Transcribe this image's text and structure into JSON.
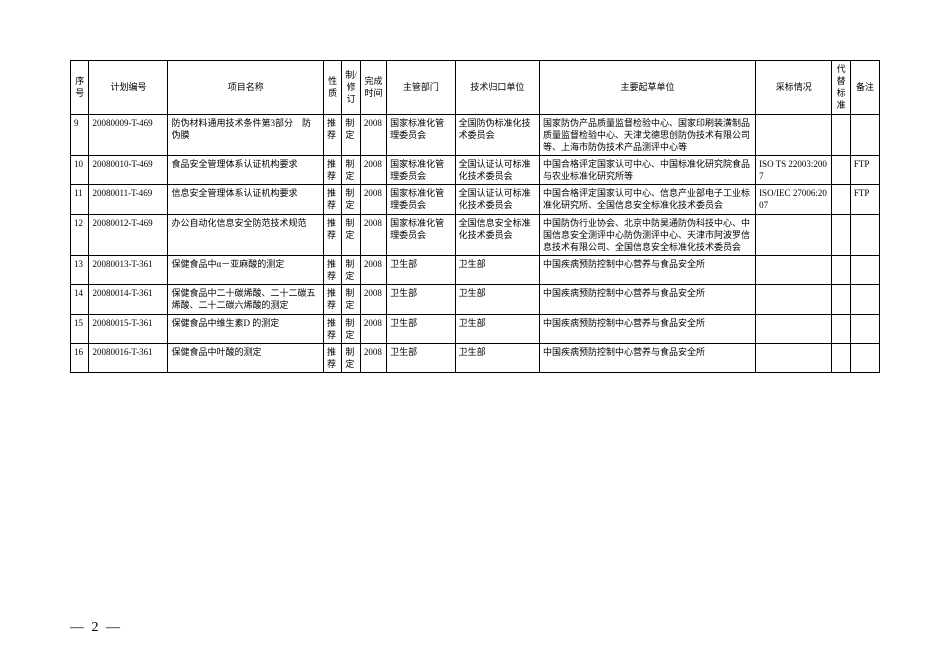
{
  "columns": [
    "序号",
    "计划编号",
    "项目名称",
    "性质",
    "制/修订",
    "完成时间",
    "主管部门",
    "技术归口单位",
    "主要起草单位",
    "采标情况",
    "代替标准",
    "备注"
  ],
  "rows": [
    [
      "9",
      "20080009-T-469",
      "防伪材料通用技术条件第3部分　防伪膜",
      "推荐",
      "制定",
      "2008",
      "国家标准化管理委员会",
      "全国防伪标准化技术委员会",
      "国家防伪产品质量监督检验中心、国家印刷装潢制品质量监督检验中心、天津戈德思创防伪技术有限公司等、上海市防伪技术产品测评中心等",
      "",
      "",
      ""
    ],
    [
      "10",
      "20080010-T-469",
      "食品安全管理体系认证机构要求",
      "推荐",
      "制定",
      "2008",
      "国家标准化管理委员会",
      "全国认证认可标准化技术委员会",
      "中国合格评定国家认可中心、中国标准化研究院食品与农业标准化研究所等",
      "ISO TS 22003:2007",
      "",
      "FTP"
    ],
    [
      "11",
      "20080011-T-469",
      "信息安全管理体系认证机构要求",
      "推荐",
      "制定",
      "2008",
      "国家标准化管理委员会",
      "全国认证认可标准化技术委员会",
      "中国合格评定国家认可中心、信息产业部电子工业标准化研究所、全国信息安全标准化技术委员会",
      "ISO/IEC 27006:2007",
      "",
      "FTP"
    ],
    [
      "12",
      "20080012-T-469",
      "办公自动化信息安全防范技术规范",
      "推荐",
      "制定",
      "2008",
      "国家标准化管理委员会",
      "全国信息安全标准化技术委员会",
      "中国防伪行业协会、北京中防昊通防伪科技中心、中国信息安全测评中心防伪测评中心、天津市阿波罗信息技术有限公司、全国信息安全标准化技术委员会",
      "",
      "",
      ""
    ],
    [
      "13",
      "20080013-T-361",
      "保健食品中α－亚麻酸的测定",
      "推荐",
      "制定",
      "2008",
      "卫生部",
      "卫生部",
      "中国疾病预防控制中心营养与食品安全所",
      "",
      "",
      ""
    ],
    [
      "14",
      "20080014-T-361",
      "保健食品中二十碳烯酸、二十二碳五烯酸、二十二碳六烯酸的测定",
      "推荐",
      "制定",
      "2008",
      "卫生部",
      "卫生部",
      "中国疾病预防控制中心营养与食品安全所",
      "",
      "",
      ""
    ],
    [
      "15",
      "20080015-T-361",
      "保健食品中维生素D 的测定",
      "推荐",
      "制定",
      "2008",
      "卫生部",
      "卫生部",
      "中国疾病预防控制中心营养与食品安全所",
      "",
      "",
      ""
    ],
    [
      "16",
      "20080016-T-361",
      "保健食品中叶酸的测定",
      "推荐",
      "制定",
      "2008",
      "卫生部",
      "卫生部",
      "中国疾病预防控制中心营养与食品安全所",
      "",
      "",
      ""
    ]
  ],
  "page_label": "— 2 —"
}
